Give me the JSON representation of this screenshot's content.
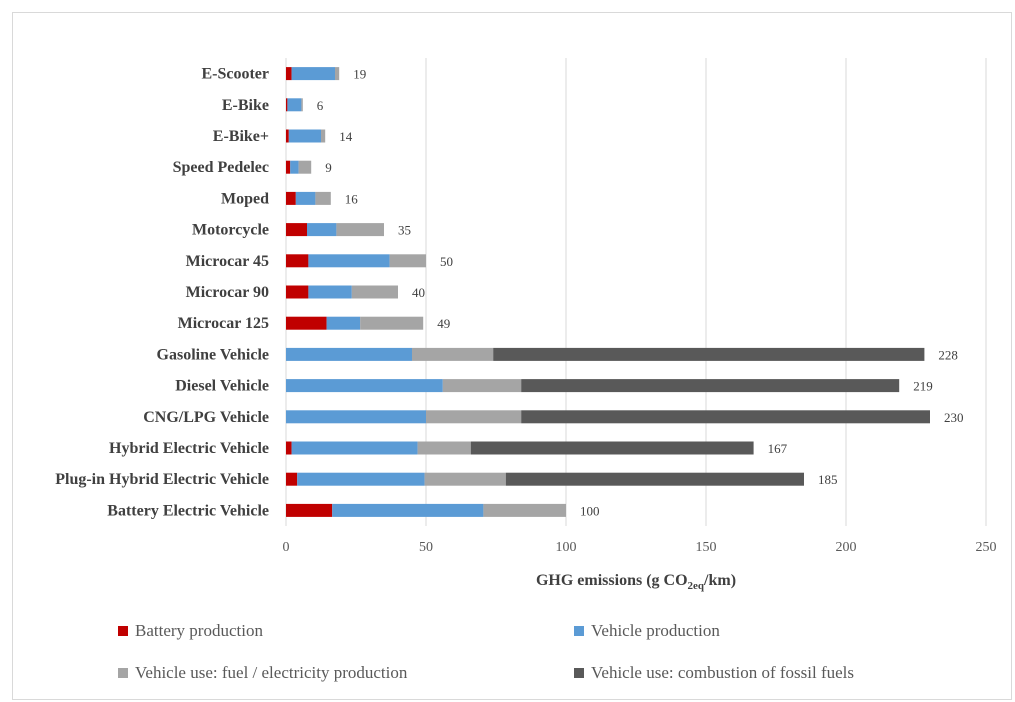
{
  "chart_data": {
    "type": "bar",
    "orientation": "horizontal",
    "stacked": true,
    "categories": [
      "E-Scooter",
      "E-Bike",
      "E-Bike+",
      "Speed Pedelec",
      "Moped",
      "Motorcycle",
      "Microcar 45",
      "Microcar 90",
      "Microcar 125",
      "Gasoline Vehicle",
      "Diesel Vehicle",
      "CNG/LPG Vehicle",
      "Hybrid Electric Vehicle",
      "Plug-in Hybrid Electric Vehicle",
      "Battery Electric Vehicle"
    ],
    "series": [
      {
        "name": "Battery production",
        "color": "#c00000",
        "values": [
          2,
          0.5,
          1,
          1.5,
          3.5,
          7.5,
          8,
          8,
          14.5,
          0,
          0,
          0,
          2,
          4,
          16.5
        ]
      },
      {
        "name": "Vehicle production",
        "color": "#5b9bd5",
        "values": [
          15.5,
          5,
          11.5,
          3,
          7,
          10.5,
          29,
          15.5,
          12,
          45,
          56,
          50,
          45,
          45.5,
          54
        ]
      },
      {
        "name": "Vehicle use: fuel / electricity production",
        "color": "#a5a5a5",
        "values": [
          1.5,
          0.5,
          1.5,
          4.5,
          5.5,
          17,
          13,
          16.5,
          22.5,
          29,
          28,
          34,
          19,
          29,
          29.5
        ]
      },
      {
        "name": "Vehicle use: combustion of fossil fuels",
        "color": "#595959",
        "values": [
          0,
          0,
          0,
          0,
          0,
          0,
          0,
          0,
          0,
          154,
          135,
          146,
          101,
          106.5,
          0
        ]
      }
    ],
    "totals": [
      "19",
      "6",
      "14",
      "9",
      "16",
      "35",
      "50",
      "40",
      "49",
      "228",
      "219",
      "230",
      "167",
      "185",
      "100"
    ],
    "x_ticks": [
      "0",
      "50",
      "100",
      "150",
      "200",
      "250"
    ],
    "xlim": [
      0,
      250
    ],
    "xlabel_main": "GHG emissions (g CO",
    "xlabel_sub": "2eq",
    "xlabel_end": "/km)",
    "grid": "vertical",
    "legend_position": "bottom"
  }
}
